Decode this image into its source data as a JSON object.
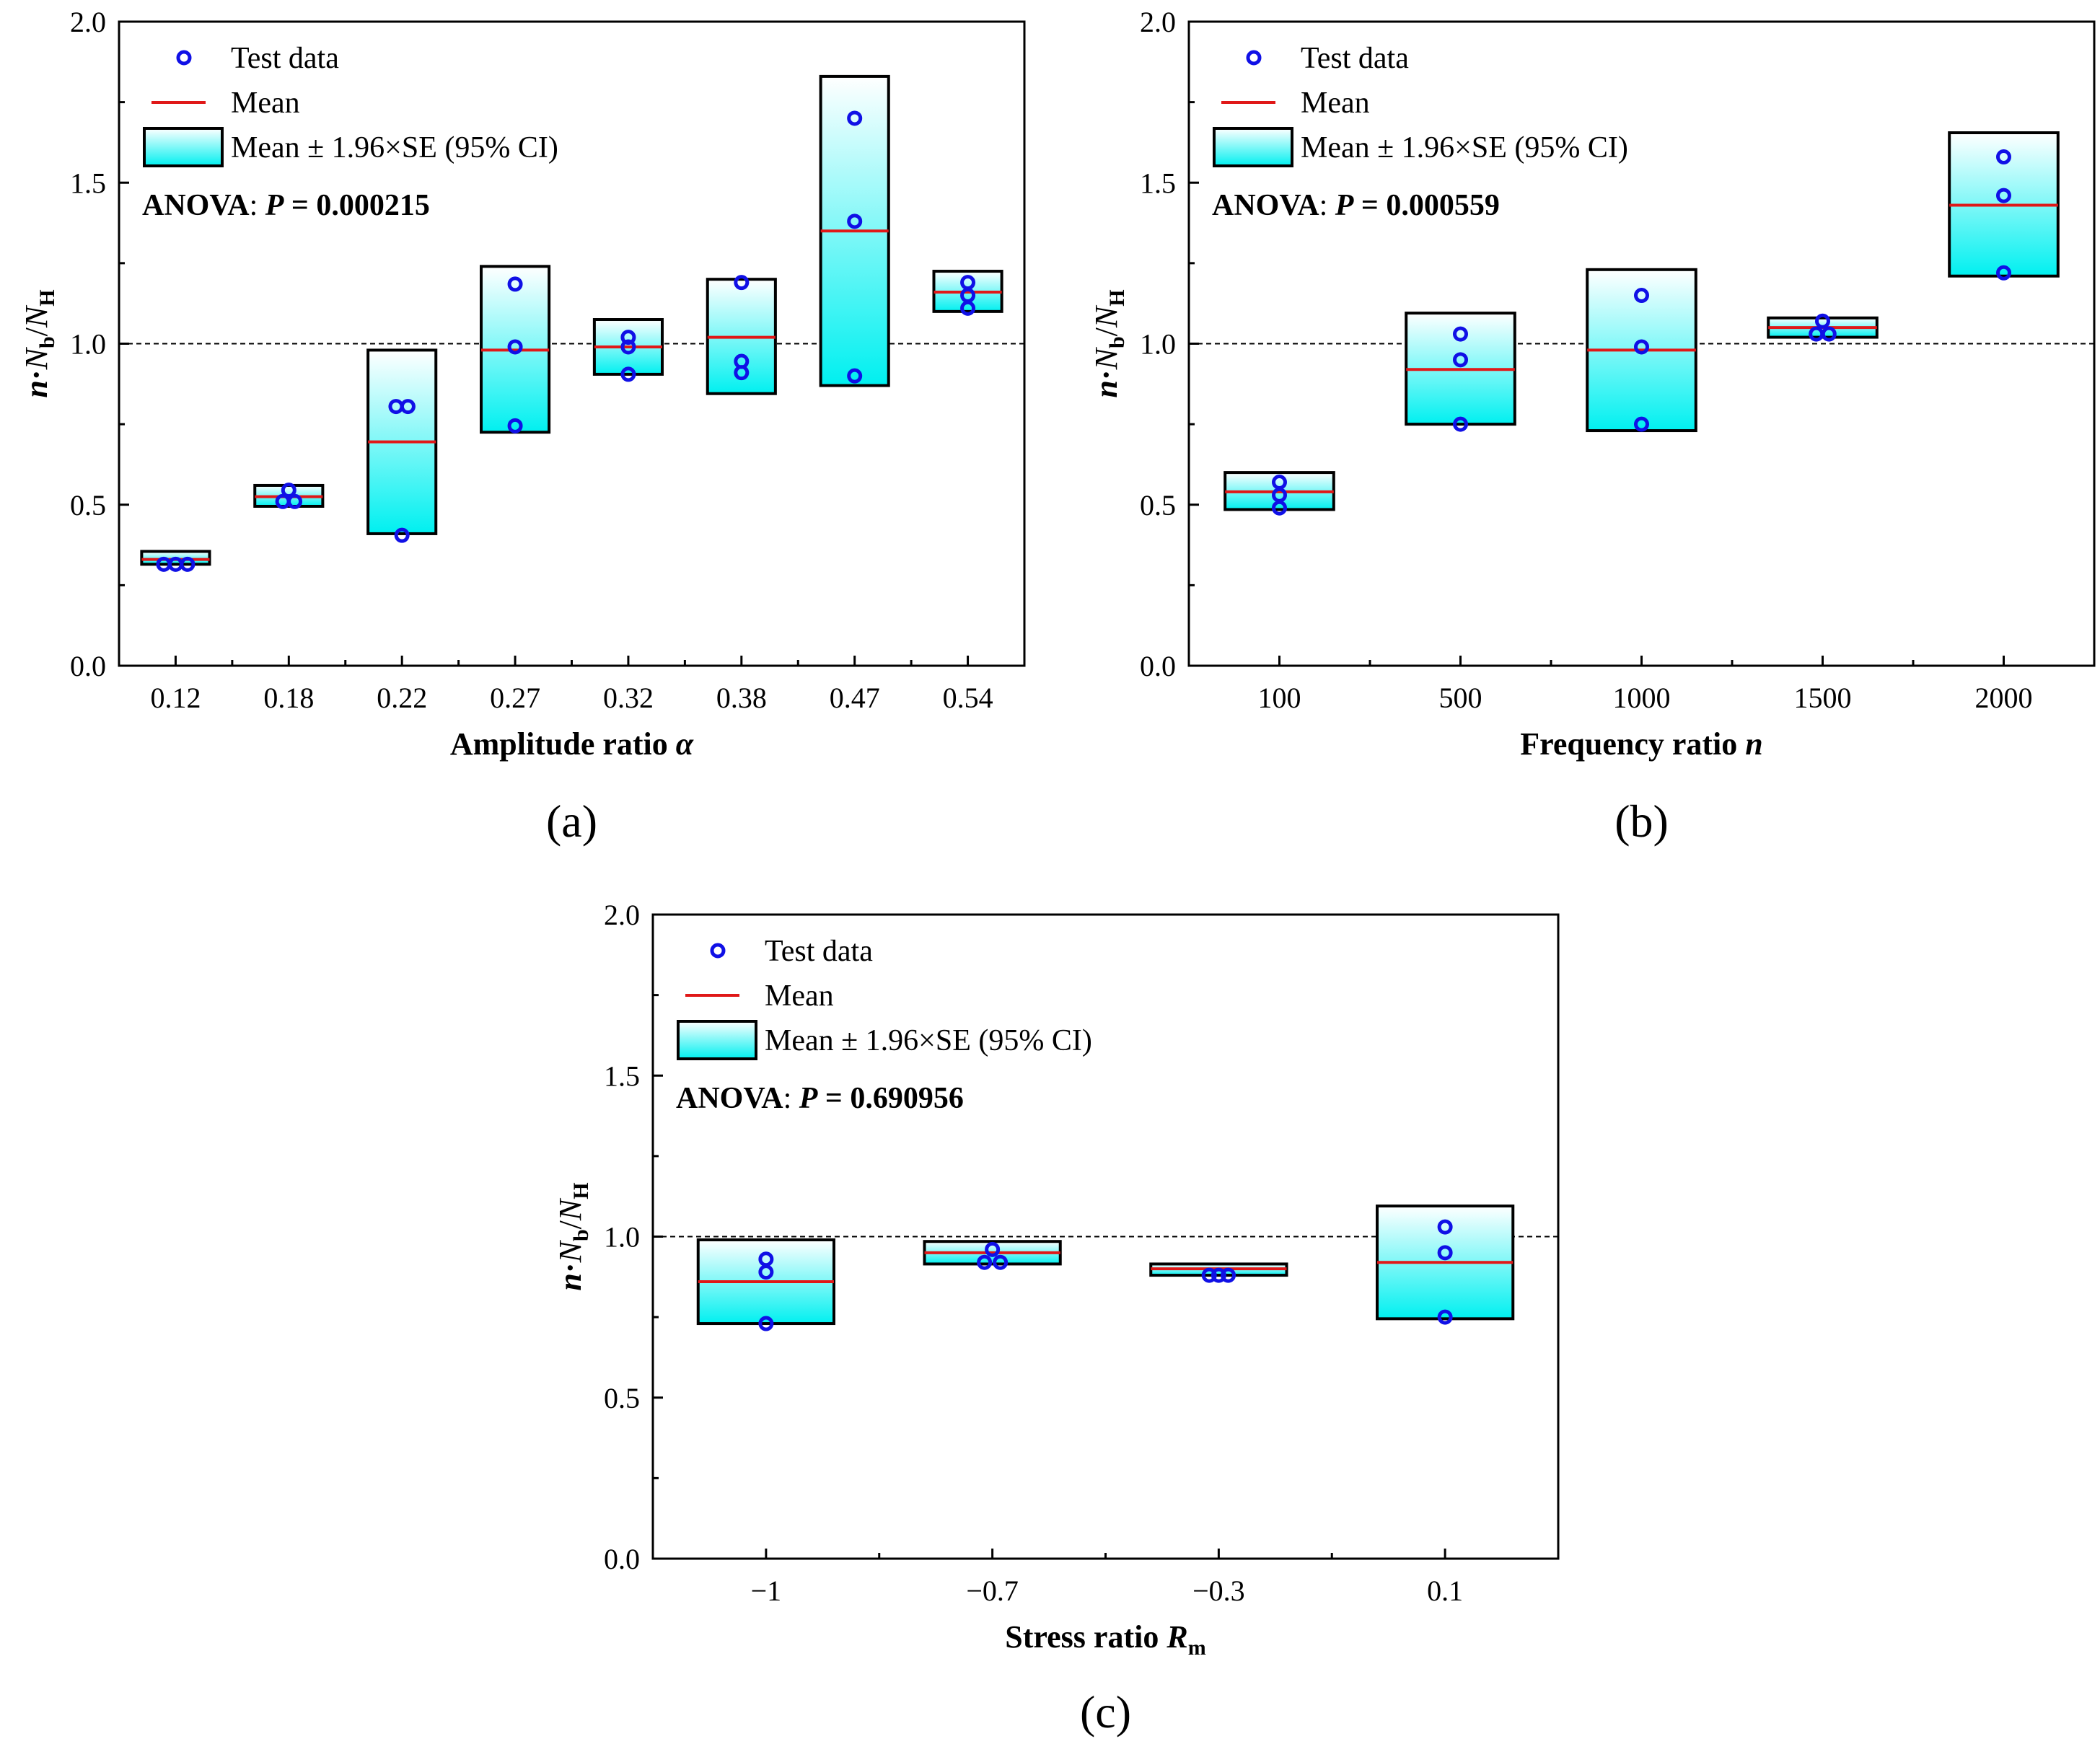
{
  "colors": {
    "point": "#1010e6",
    "mean": "#e01818",
    "ci_top": "#ffffff",
    "ci_bottom": "#00f0f0",
    "axes": "#000000"
  },
  "y_label": {
    "italic_n": "n",
    "dot": "·",
    "N": "N",
    "sub_b": "b",
    "slash": "/",
    "N2": "N",
    "sub_H": "H"
  },
  "legend": {
    "test_data": "Test data",
    "mean": "Mean",
    "ci": "Mean ± 1.96×SE (95% CI)"
  },
  "chart_data": [
    {
      "type": "box",
      "panel_label": "(a)",
      "title": "",
      "xlabel": {
        "text": "Amplitude ratio ",
        "var": "α",
        "sub": ""
      },
      "ylabel": "n·Nb/NH",
      "ylim": [
        0,
        2.0
      ],
      "yticks": [
        0.0,
        0.5,
        1.0,
        1.5,
        2.0
      ],
      "ytick_labels": [
        "0.0",
        "0.5",
        "1.0",
        "1.5",
        "2.0"
      ],
      "reference_line": 1.0,
      "anova": {
        "prefix": "ANOVA",
        "colon": ": ",
        "p": "P",
        "eq": " = 0.000215"
      },
      "categories": [
        "0.12",
        "0.18",
        "0.22",
        "0.27",
        "0.32",
        "0.38",
        "0.47",
        "0.54"
      ],
      "mean": [
        0.33,
        0.525,
        0.695,
        0.98,
        0.99,
        1.02,
        1.35,
        1.16
      ],
      "ci_low": [
        0.315,
        0.495,
        0.41,
        0.725,
        0.905,
        0.845,
        0.87,
        1.1
      ],
      "ci_high": [
        0.355,
        0.56,
        0.98,
        1.24,
        1.075,
        1.2,
        1.83,
        1.225
      ],
      "points": [
        [
          [
            -0.3,
            0.315
          ],
          [
            0,
            0.315
          ],
          [
            0.3,
            0.315
          ]
        ],
        [
          [
            -0.15,
            0.51
          ],
          [
            0,
            0.545
          ],
          [
            0.15,
            0.51
          ]
        ],
        [
          [
            -0.15,
            0.805
          ],
          [
            0.15,
            0.805
          ],
          [
            0,
            0.405
          ]
        ],
        [
          [
            0,
            1.185
          ],
          [
            0,
            0.99
          ],
          [
            0,
            0.745
          ]
        ],
        [
          [
            0,
            1.02
          ],
          [
            0,
            0.99
          ],
          [
            0,
            0.905
          ]
        ],
        [
          [
            0,
            1.19
          ],
          [
            0,
            0.945
          ],
          [
            0,
            0.91
          ]
        ],
        [
          [
            0,
            1.7
          ],
          [
            0,
            1.38
          ],
          [
            0,
            0.9
          ]
        ],
        [
          [
            0,
            1.19
          ],
          [
            0,
            1.15
          ],
          [
            0,
            1.11
          ]
        ]
      ]
    },
    {
      "type": "box",
      "panel_label": "(b)",
      "title": "",
      "xlabel": {
        "text": "Frequency ratio ",
        "var": "n",
        "sub": ""
      },
      "ylabel": "n·Nb/NH",
      "ylim": [
        0,
        2.0
      ],
      "yticks": [
        0.0,
        0.5,
        1.0,
        1.5,
        2.0
      ],
      "ytick_labels": [
        "0.0",
        "0.5",
        "1.0",
        "1.5",
        "2.0"
      ],
      "reference_line": 1.0,
      "anova": {
        "prefix": "ANOVA",
        "colon": ": ",
        "p": "P",
        "eq": " = 0.000559"
      },
      "categories": [
        "100",
        "500",
        "1000",
        "1500",
        "2000"
      ],
      "mean": [
        0.54,
        0.92,
        0.98,
        1.05,
        1.43
      ],
      "ci_low": [
        0.485,
        0.75,
        0.73,
        1.02,
        1.21
      ],
      "ci_high": [
        0.6,
        1.095,
        1.23,
        1.08,
        1.655
      ],
      "points": [
        [
          [
            0,
            0.57
          ],
          [
            0,
            0.53
          ],
          [
            0,
            0.49
          ]
        ],
        [
          [
            0,
            1.03
          ],
          [
            0,
            0.95
          ],
          [
            0,
            0.75
          ]
        ],
        [
          [
            0,
            1.15
          ],
          [
            0,
            0.99
          ],
          [
            0,
            0.75
          ]
        ],
        [
          [
            0,
            1.07
          ],
          [
            -0.1,
            1.03
          ],
          [
            0.1,
            1.03
          ]
        ],
        [
          [
            0,
            1.58
          ],
          [
            0,
            1.46
          ],
          [
            0,
            1.22
          ]
        ]
      ]
    },
    {
      "type": "box",
      "panel_label": "(c)",
      "title": "",
      "xlabel": {
        "text": "Stress ratio ",
        "var": "R",
        "sub": "m"
      },
      "ylabel": "n·Nb/NH",
      "ylim": [
        0,
        2.0
      ],
      "yticks": [
        0.0,
        0.5,
        1.0,
        1.5,
        2.0
      ],
      "ytick_labels": [
        "0.0",
        "0.5",
        "1.0",
        "1.5",
        "2.0"
      ],
      "reference_line": 1.0,
      "anova": {
        "prefix": "ANOVA",
        "colon": ": ",
        "p": "P",
        "eq": " = 0.690956"
      },
      "categories": [
        "−1",
        "−0.7",
        "−0.3",
        "0.1"
      ],
      "mean": [
        0.86,
        0.95,
        0.9,
        0.92
      ],
      "ci_low": [
        0.73,
        0.915,
        0.88,
        0.745
      ],
      "ci_high": [
        0.99,
        0.985,
        0.915,
        1.095
      ],
      "points": [
        [
          [
            0,
            0.93
          ],
          [
            0,
            0.89
          ],
          [
            0,
            0.73
          ]
        ],
        [
          [
            0,
            0.96
          ],
          [
            -0.1,
            0.92
          ],
          [
            0.1,
            0.92
          ]
        ],
        [
          [
            -0.12,
            0.88
          ],
          [
            0,
            0.88
          ],
          [
            0.12,
            0.88
          ]
        ],
        [
          [
            0,
            1.03
          ],
          [
            0,
            0.95
          ],
          [
            0,
            0.75
          ]
        ]
      ]
    }
  ]
}
